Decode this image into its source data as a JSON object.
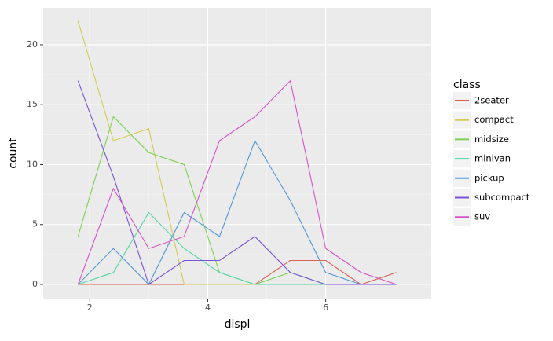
{
  "chart_data": {
    "type": "line",
    "x_label": "displ",
    "y_label": "count",
    "x": [
      1.8,
      2.4,
      3.0,
      3.6,
      4.2,
      4.8,
      5.4,
      6.0,
      6.6,
      7.2
    ],
    "series": [
      {
        "name": "2seater",
        "color": "#d9604f",
        "values": [
          0,
          0,
          0,
          0,
          0,
          0,
          2,
          2,
          0,
          1
        ]
      },
      {
        "name": "compact",
        "color": "#d4cc4f",
        "values": [
          22,
          12,
          13,
          0,
          0,
          0,
          0,
          0,
          0,
          0
        ]
      },
      {
        "name": "midsize",
        "color": "#7cd250",
        "values": [
          4,
          14,
          11,
          10,
          1,
          0,
          1,
          0,
          0,
          0
        ]
      },
      {
        "name": "minivan",
        "color": "#52d6a0",
        "values": [
          0,
          1,
          6,
          3,
          1,
          0,
          0,
          0,
          0,
          0
        ]
      },
      {
        "name": "pickup",
        "color": "#5297d6",
        "values": [
          0,
          3,
          0,
          6,
          4,
          12,
          7,
          1,
          0,
          0
        ]
      },
      {
        "name": "subcompact",
        "color": "#7a52d6",
        "values": [
          17,
          9,
          0,
          2,
          2,
          4,
          1,
          0,
          0,
          0
        ]
      },
      {
        "name": "suv",
        "color": "#d652c6",
        "values": [
          0,
          8,
          3,
          4,
          12,
          14,
          17,
          3,
          1,
          0
        ]
      }
    ],
    "legend_title": "class",
    "legend": "right",
    "xlim": [
      1.21,
      7.79
    ],
    "xticks": [
      2,
      4,
      6
    ],
    "ylim": [
      -1.18,
      23.08
    ],
    "yticks": [
      0,
      5,
      10,
      15,
      20
    ],
    "grid": true
  }
}
